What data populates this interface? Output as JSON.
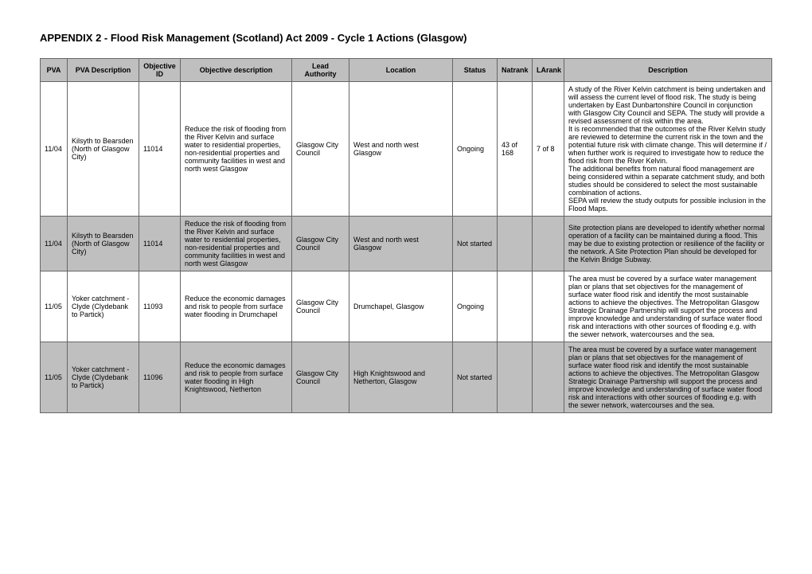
{
  "title": "APPENDIX 2 - Flood Risk Management (Scotland) Act 2009 - Cycle 1 Actions (Glasgow)",
  "columns": [
    "PVA",
    "PVA Description",
    "Objective ID",
    "Objective description",
    "Lead Authority",
    "Location",
    "Status",
    "Natrank",
    "LArank",
    "Description"
  ],
  "rows": [
    {
      "alt": false,
      "pva": "11/04",
      "pvadesc": "Kilsyth to Bearsden (North of Glasgow City)",
      "objid": "11014",
      "objdesc": "Reduce the risk of flooding from the River Kelvin and surface water to residential properties, non-residential properties and community facilities in west and north west Glasgow",
      "lead": "Glasgow City Council",
      "loc": "West and north west Glasgow",
      "status": "Ongoing",
      "natrank": "43 of 168",
      "larank": "7 of 8",
      "desc": "A study of the River Kelvin catchment is being undertaken and will assess the current level of flood risk. The study is being undertaken by East Dunbartonshire Council in conjunction with Glasgow City Council and SEPA. The study will provide a revised assessment of risk within the area.\nIt is recommended that the outcomes of the River Kelvin study are reviewed to determine the current risk in the town and the potential future risk with climate change. This will determine if / when further work is required to investigate how to reduce the flood risk from the River Kelvin.\nThe additional benefits from natural flood management are being considered within a separate catchment study, and both studies should be considered to select the most sustainable combination of actions.\nSEPA will review the study outputs for possible inclusion in the Flood Maps."
    },
    {
      "alt": true,
      "pva": "11/04",
      "pvadesc": "Kilsyth to Bearsden (North of Glasgow City)",
      "objid": "11014",
      "objdesc": "Reduce the risk of flooding from the River Kelvin and surface water to residential properties, non-residential properties and community facilities in west and north west Glasgow",
      "lead": "Glasgow City Council",
      "loc": "West and north west Glasgow",
      "status": "Not started",
      "natrank": "",
      "larank": "",
      "desc": "Site protection plans are developed to identify whether normal operation of a facility can be maintained during a flood. This may be due to existing protection or resilience of the facility or the network. A Site Protection Plan should be developed for the Kelvin Bridge Subway."
    },
    {
      "alt": false,
      "pva": "11/05",
      "pvadesc": "Yoker catchment - Clyde (Clydebank to Partick)",
      "objid": "11093",
      "objdesc": "Reduce the economic damages and risk to people from surface water flooding in Drumchapel",
      "lead": "Glasgow City Council",
      "loc": "Drumchapel, Glasgow",
      "status": "Ongoing",
      "natrank": "",
      "larank": "",
      "desc": "The area must be covered by a surface water management plan or plans that set objectives for the management of surface water flood risk and identify the most sustainable actions to achieve the objectives. The Metropolitan Glasgow Strategic Drainage Partnership will support the process and improve knowledge and understanding of surface water flood risk and interactions with other sources of flooding e.g. with the sewer network, watercourses and the sea."
    },
    {
      "alt": true,
      "pva": "11/05",
      "pvadesc": "Yoker catchment - Clyde (Clydebank to Partick)",
      "objid": "11096",
      "objdesc": "Reduce the economic damages and risk to people from surface water flooding in High Knightswood, Netherton",
      "lead": "Glasgow City Council",
      "loc": "High Knightswood and Netherton, Glasgow",
      "status": "Not started",
      "natrank": "",
      "larank": "",
      "desc": "The area must be covered by a surface water management plan or plans that set objectives for the management of surface water flood risk and identify the most sustainable actions to achieve the objectives. The Metropolitan Glasgow Strategic Drainage Partnership will support the process and improve knowledge and understanding of surface water flood risk and interactions with other sources of flooding e.g. with the sewer network, watercourses and the sea."
    }
  ]
}
